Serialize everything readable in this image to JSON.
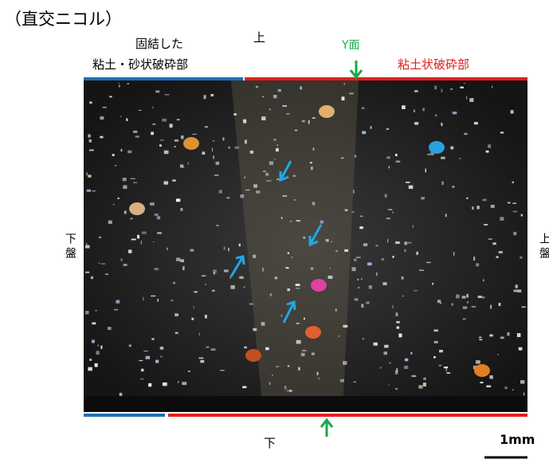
{
  "title": "（直交ニコル）",
  "top_label": "上",
  "bottom_label": "下",
  "left_label": "下盤",
  "right_label": "上盤",
  "left_zone": [
    "固結した",
    "粘土・砂状破砕部"
  ],
  "right_zone": "粘土状破砕部",
  "y_plane": "Y面",
  "scale": "1mm"
}
